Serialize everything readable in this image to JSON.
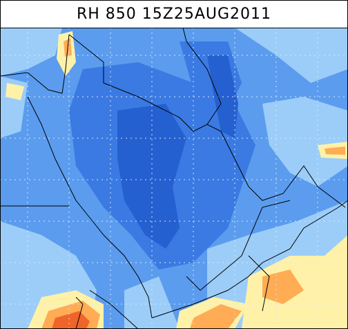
{
  "header": {
    "title": "RH 850 15Z25AUG2011"
  }
}
